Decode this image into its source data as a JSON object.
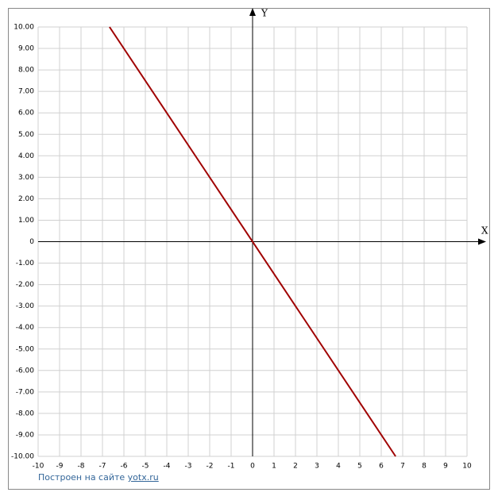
{
  "chart_data": {
    "type": "line",
    "x_label": "X",
    "y_label": "Y",
    "x": [
      -6.67,
      6.67
    ],
    "values": [
      10,
      -10
    ],
    "color": "#a00000",
    "xlim": [
      -10,
      10
    ],
    "ylim": [
      -10,
      10
    ],
    "xticks": [
      -10,
      -9,
      -8,
      -7,
      -6,
      -5,
      -4,
      -3,
      -2,
      -1,
      0,
      1,
      2,
      3,
      4,
      5,
      6,
      7,
      8,
      9,
      10
    ],
    "yticks": [
      {
        "value": -10,
        "label": "-10.00"
      },
      {
        "value": -9,
        "label": "-9.00"
      },
      {
        "value": -8,
        "label": "-8.00"
      },
      {
        "value": -7,
        "label": "-7.00"
      },
      {
        "value": -6,
        "label": "-6.00"
      },
      {
        "value": -5,
        "label": "-5.00"
      },
      {
        "value": -4,
        "label": "-4.00"
      },
      {
        "value": -3,
        "label": "-3.00"
      },
      {
        "value": -2,
        "label": "-2.00"
      },
      {
        "value": -1,
        "label": "-1.00"
      },
      0,
      {
        "value": 1,
        "label": "1.00"
      },
      {
        "value": 2,
        "label": "2.00"
      },
      {
        "value": 3,
        "label": "3.00"
      },
      {
        "value": 4,
        "label": "4.00"
      },
      {
        "value": 5,
        "label": "5.00"
      },
      {
        "value": 6,
        "label": "6.00"
      },
      {
        "value": 7,
        "label": "7.00"
      },
      {
        "value": 8,
        "label": "8.00"
      },
      {
        "value": 9,
        "label": "9.00"
      },
      {
        "value": 10,
        "label": "10.00"
      }
    ],
    "grid": true
  },
  "footer": {
    "text": "Построен на сайте",
    "link": "yotx.ru"
  }
}
